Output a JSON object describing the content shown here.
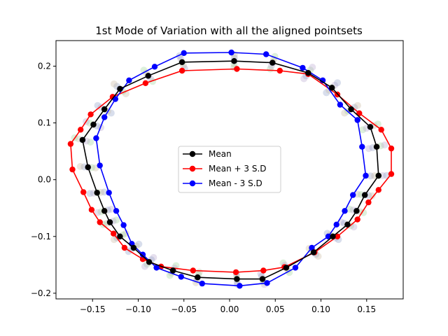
{
  "chart_data": {
    "type": "line",
    "title": "1st Mode of Variation with all the aligned pointsets",
    "xlabel": "",
    "ylabel": "",
    "xlim": [
      -0.19,
      0.19
    ],
    "ylim": [
      -0.21,
      0.245
    ],
    "x_ticks": [
      -0.15,
      -0.1,
      -0.05,
      0.0,
      0.05,
      0.1,
      0.15
    ],
    "y_ticks": [
      -0.2,
      -0.1,
      0.0,
      0.1,
      0.2
    ],
    "x_tick_labels": [
      "−0.15",
      "−0.10",
      "−0.05",
      "0.00",
      "0.05",
      "0.10",
      "0.15"
    ],
    "y_tick_labels": [
      "−0.2",
      "−0.1",
      "0.0",
      "0.1",
      "0.2"
    ],
    "grid": false,
    "legend_position": "center",
    "series": [
      {
        "name": "Mean",
        "color": "#000000",
        "points": [
          [
            -0.052,
            0.207
          ],
          [
            0.005,
            0.209
          ],
          [
            0.047,
            0.206
          ],
          [
            0.086,
            0.188
          ],
          [
            0.112,
            0.162
          ],
          [
            0.133,
            0.124
          ],
          [
            0.154,
            0.093
          ],
          [
            0.161,
            0.058
          ],
          [
            0.163,
            0.007
          ],
          [
            0.148,
            -0.027
          ],
          [
            0.139,
            -0.055
          ],
          [
            0.129,
            -0.079
          ],
          [
            0.113,
            -0.1
          ],
          [
            0.092,
            -0.128
          ],
          [
            0.062,
            -0.155
          ],
          [
            0.036,
            -0.175
          ],
          [
            0.008,
            -0.175
          ],
          [
            -0.035,
            -0.172
          ],
          [
            -0.062,
            -0.16
          ],
          [
            -0.088,
            -0.145
          ],
          [
            -0.105,
            -0.12
          ],
          [
            -0.12,
            -0.1
          ],
          [
            -0.131,
            -0.075
          ],
          [
            -0.137,
            -0.055
          ],
          [
            -0.145,
            -0.023
          ],
          [
            -0.155,
            0.022
          ],
          [
            -0.161,
            0.07
          ],
          [
            -0.149,
            0.097
          ],
          [
            -0.137,
            0.124
          ],
          [
            -0.12,
            0.16
          ],
          [
            -0.089,
            0.183
          ],
          [
            -0.052,
            0.207
          ]
        ]
      },
      {
        "name": "Mean + 3 S.D",
        "color": "#ff0000",
        "points": [
          [
            -0.052,
            0.192
          ],
          [
            0.008,
            0.195
          ],
          [
            0.055,
            0.192
          ],
          [
            0.086,
            0.186
          ],
          [
            0.118,
            0.15
          ],
          [
            0.142,
            0.117
          ],
          [
            0.166,
            0.088
          ],
          [
            0.177,
            0.055
          ],
          [
            0.177,
            0.01
          ],
          [
            0.163,
            -0.018
          ],
          [
            0.152,
            -0.04
          ],
          [
            0.14,
            -0.07
          ],
          [
            0.118,
            -0.1
          ],
          [
            0.093,
            -0.128
          ],
          [
            0.06,
            -0.154
          ],
          [
            0.037,
            -0.16
          ],
          [
            0.007,
            -0.163
          ],
          [
            -0.04,
            -0.16
          ],
          [
            -0.075,
            -0.153
          ],
          [
            -0.095,
            -0.14
          ],
          [
            -0.115,
            -0.12
          ],
          [
            -0.127,
            -0.095
          ],
          [
            -0.142,
            -0.075
          ],
          [
            -0.151,
            -0.053
          ],
          [
            -0.16,
            -0.022
          ],
          [
            -0.172,
            0.018
          ],
          [
            -0.174,
            0.063
          ],
          [
            -0.163,
            0.088
          ],
          [
            -0.152,
            0.115
          ],
          [
            -0.128,
            0.146
          ],
          [
            -0.092,
            0.17
          ],
          [
            -0.052,
            0.192
          ]
        ]
      },
      {
        "name": "Mean - 3 S.D",
        "color": "#0000ff",
        "points": [
          [
            -0.05,
            0.223
          ],
          [
            0.002,
            0.224
          ],
          [
            0.04,
            0.221
          ],
          [
            0.08,
            0.197
          ],
          [
            0.102,
            0.175
          ],
          [
            0.121,
            0.132
          ],
          [
            0.14,
            0.105
          ],
          [
            0.145,
            0.058
          ],
          [
            0.149,
            0.007
          ],
          [
            0.135,
            -0.027
          ],
          [
            0.126,
            -0.055
          ],
          [
            0.117,
            -0.079
          ],
          [
            0.108,
            -0.1
          ],
          [
            0.09,
            -0.12
          ],
          [
            0.072,
            -0.155
          ],
          [
            0.041,
            -0.182
          ],
          [
            0.011,
            -0.187
          ],
          [
            -0.03,
            -0.183
          ],
          [
            -0.053,
            -0.171
          ],
          [
            -0.08,
            -0.155
          ],
          [
            -0.095,
            -0.132
          ],
          [
            -0.107,
            -0.113
          ],
          [
            -0.116,
            -0.08
          ],
          [
            -0.124,
            -0.055
          ],
          [
            -0.132,
            -0.023
          ],
          [
            -0.142,
            0.025
          ],
          [
            -0.146,
            0.073
          ],
          [
            -0.137,
            0.11
          ],
          [
            -0.125,
            0.142
          ],
          [
            -0.11,
            0.175
          ],
          [
            -0.082,
            0.199
          ],
          [
            -0.05,
            0.223
          ]
        ]
      }
    ],
    "background_points_color": "#a8d8a0"
  }
}
